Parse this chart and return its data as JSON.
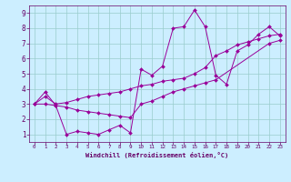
{
  "xlabel": "Windchill (Refroidissement éolien,°C)",
  "bg_color": "#cceeff",
  "line_color": "#990099",
  "grid_color": "#99cccc",
  "xlim": [
    -0.5,
    23.5
  ],
  "ylim": [
    0.5,
    9.5
  ],
  "xticks": [
    0,
    1,
    2,
    3,
    4,
    5,
    6,
    7,
    8,
    9,
    10,
    11,
    12,
    13,
    14,
    15,
    16,
    17,
    18,
    19,
    20,
    21,
    22,
    23
  ],
  "yticks": [
    1,
    2,
    3,
    4,
    5,
    6,
    7,
    8,
    9
  ],
  "line1_x": [
    0,
    1,
    2,
    3,
    4,
    5,
    6,
    7,
    8,
    9,
    10,
    11,
    12,
    13,
    14,
    15,
    16,
    17,
    18,
    19,
    20,
    21,
    22,
    23
  ],
  "line1_y": [
    3.0,
    3.8,
    2.9,
    1.0,
    1.2,
    1.1,
    1.0,
    1.3,
    1.6,
    1.1,
    5.3,
    4.9,
    5.5,
    8.0,
    8.1,
    9.2,
    8.1,
    4.9,
    4.3,
    6.5,
    6.9,
    7.6,
    8.1,
    7.5
  ],
  "line2_x": [
    0,
    1,
    2,
    3,
    4,
    5,
    6,
    7,
    8,
    9,
    10,
    11,
    12,
    13,
    14,
    15,
    16,
    17,
    18,
    19,
    20,
    21,
    22,
    23
  ],
  "line2_y": [
    3.0,
    3.5,
    3.0,
    3.1,
    3.3,
    3.5,
    3.6,
    3.7,
    3.8,
    4.0,
    4.2,
    4.3,
    4.5,
    4.6,
    4.7,
    5.0,
    5.4,
    6.2,
    6.5,
    6.9,
    7.1,
    7.3,
    7.5,
    7.6
  ],
  "line3_x": [
    0,
    1,
    2,
    3,
    4,
    5,
    6,
    7,
    8,
    9,
    10,
    11,
    12,
    13,
    14,
    15,
    16,
    17,
    22,
    23
  ],
  "line3_y": [
    3.0,
    3.0,
    2.9,
    2.8,
    2.6,
    2.5,
    2.4,
    2.3,
    2.2,
    2.1,
    3.0,
    3.2,
    3.5,
    3.8,
    4.0,
    4.2,
    4.4,
    4.6,
    7.0,
    7.2
  ]
}
